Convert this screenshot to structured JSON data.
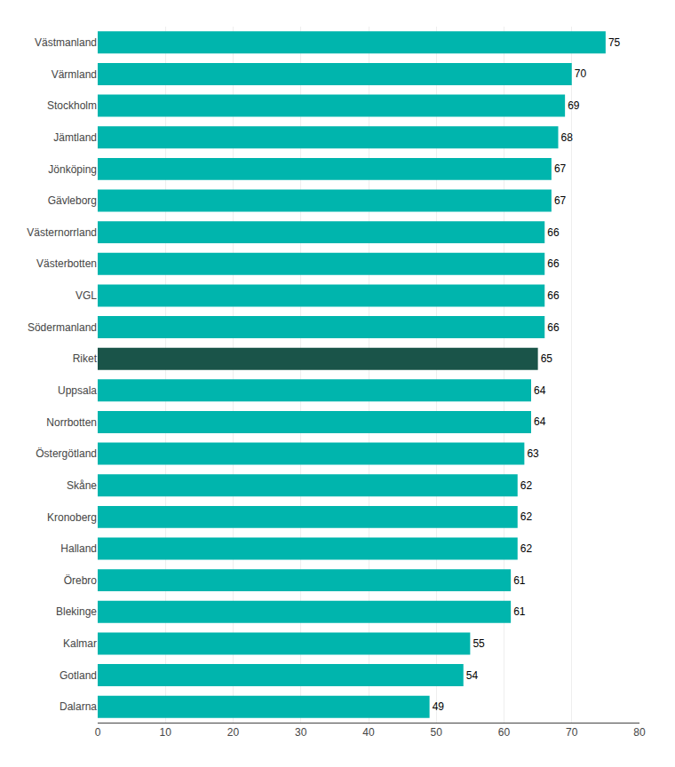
{
  "chart_data": {
    "type": "bar",
    "orientation": "horizontal",
    "categories": [
      "Dalarna",
      "Gotland",
      "Kalmar",
      "Blekinge",
      "Örebro",
      "Halland",
      "Kronoberg",
      "Skåne",
      "Östergötland",
      "Norrbotten",
      "Uppsala",
      "Riket",
      "Södermanland",
      "VGL",
      "Västerbotten",
      "Västernorrland",
      "Gävleborg",
      "Jönköping",
      "Jämtland",
      "Stockholm",
      "Värmland",
      "Västmanland"
    ],
    "values": [
      49,
      54,
      55,
      61,
      61,
      62,
      62,
      62,
      63,
      64,
      64,
      65,
      66,
      66,
      66,
      66,
      67,
      67,
      68,
      69,
      70,
      75
    ],
    "colors": [
      "#00B5AD",
      "#00B5AD",
      "#00B5AD",
      "#00B5AD",
      "#00B5AD",
      "#00B5AD",
      "#00B5AD",
      "#00B5AD",
      "#00B5AD",
      "#00B5AD",
      "#00B5AD",
      "#1A5449",
      "#00B5AD",
      "#00B5AD",
      "#00B5AD",
      "#00B5AD",
      "#00B5AD",
      "#00B5AD",
      "#00B5AD",
      "#00B5AD",
      "#00B5AD",
      "#00B5AD"
    ],
    "xlim": [
      0,
      80
    ],
    "xticks": [
      0,
      10,
      20,
      30,
      40,
      50,
      60,
      70,
      80
    ],
    "grid": true,
    "data_labels": true
  }
}
